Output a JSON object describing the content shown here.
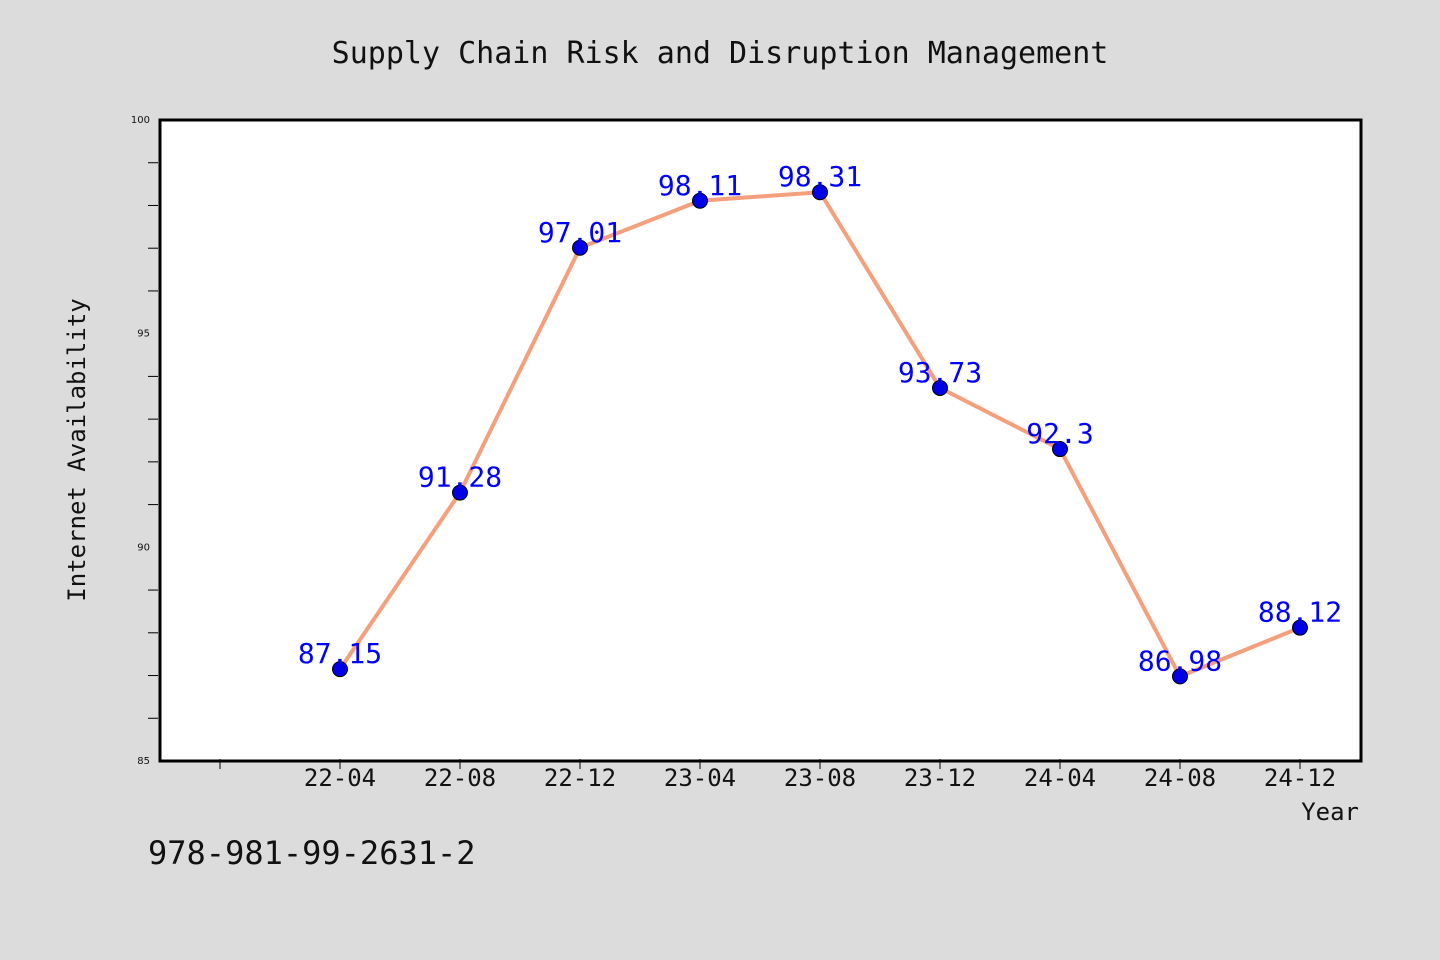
{
  "chart_data": {
    "type": "line",
    "title": "Supply Chain Risk and Disruption Management",
    "xlabel": "Year",
    "ylabel": "Internet Availability",
    "categories": [
      "22-04",
      "22-08",
      "22-12",
      "23-04",
      "23-08",
      "23-12",
      "24-04",
      "24-08",
      "24-12"
    ],
    "series": [
      {
        "values": [
          87.15,
          91.28,
          97.01,
          98.11,
          98.31,
          93.73,
          92.3,
          86.98,
          88.12
        ],
        "line_color": "#f4a07c",
        "marker_color": "#0000e6"
      }
    ],
    "data_labels": [
      "87.15",
      "91.28",
      "97.01",
      "98.11",
      "98.31",
      "93.73",
      "92.3",
      "86.98",
      "88.12"
    ],
    "ylim": [
      85,
      100
    ],
    "yticks": [
      "85",
      "90",
      "95",
      "100"
    ],
    "grid": false,
    "label_color": "#0000ff"
  },
  "footer": {
    "isbn": "978-981-99-2631-2"
  }
}
